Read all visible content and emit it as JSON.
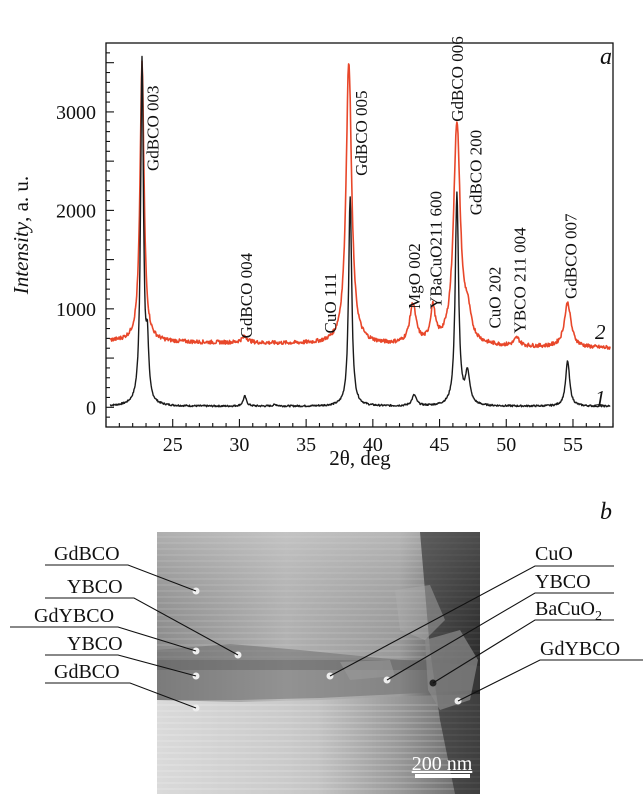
{
  "panel_a_label": "a",
  "panel_b_label": "b",
  "chart_data": {
    "type": "line",
    "xlabel": "2θ, deg",
    "ylabel_italic": "Intensity",
    "ylabel_unit": ", a. u.",
    "xlim": [
      20,
      58
    ],
    "ylim": [
      -200,
      3700
    ],
    "xticks": [
      25,
      30,
      35,
      40,
      45,
      50,
      55
    ],
    "yticks": [
      0,
      1000,
      2000,
      3000
    ],
    "grid": false,
    "series": [
      {
        "name": "1",
        "color": "#1a1a1a",
        "baseline": 10,
        "peaks": [
          {
            "x": 22.7,
            "h": 3500,
            "w": 0.13
          },
          {
            "x": 23.1,
            "h": 540,
            "w": 0.12
          },
          {
            "x": 30.4,
            "h": 100,
            "w": 0.15
          },
          {
            "x": 32.7,
            "h": 15,
            "w": 0.2
          },
          {
            "x": 38.3,
            "h": 2130,
            "w": 0.14
          },
          {
            "x": 43.1,
            "h": 110,
            "w": 0.2
          },
          {
            "x": 46.3,
            "h": 2150,
            "w": 0.15
          },
          {
            "x": 47.1,
            "h": 320,
            "w": 0.2
          },
          {
            "x": 54.6,
            "h": 460,
            "w": 0.18
          }
        ]
      },
      {
        "name": "2",
        "color": "#e8472a",
        "baseline": 670,
        "baseline_end": 600,
        "peaks": [
          {
            "x": 22.7,
            "h": 2830,
            "w": 0.18
          },
          {
            "x": 30.4,
            "h": 60,
            "w": 0.3
          },
          {
            "x": 38.2,
            "h": 2870,
            "w": 0.25
          },
          {
            "x": 43.0,
            "h": 400,
            "w": 0.28
          },
          {
            "x": 44.5,
            "h": 350,
            "w": 0.22
          },
          {
            "x": 46.3,
            "h": 2250,
            "w": 0.3
          },
          {
            "x": 47.1,
            "h": 250,
            "w": 0.3
          },
          {
            "x": 50.8,
            "h": 80,
            "w": 0.25
          },
          {
            "x": 54.6,
            "h": 450,
            "w": 0.3
          }
        ]
      }
    ],
    "annotations": [
      {
        "text": "GdBCO 003",
        "x": 23.5,
        "y": 2400
      },
      {
        "text": "GdBCO 004",
        "x": 30.5,
        "y": 700
      },
      {
        "text": "CuO 111",
        "x": 36.8,
        "y": 750
      },
      {
        "text": "GdBCO 005",
        "x": 39.1,
        "y": 2350
      },
      {
        "text": "MgO 002",
        "x": 43.1,
        "y": 1000
      },
      {
        "text": "YBaCuO211 600",
        "x": 44.7,
        "y": 1000
      },
      {
        "text": "GdBCO 006",
        "x": 46.3,
        "y": 2900
      },
      {
        "text": "GdBCO 200",
        "x": 47.7,
        "y": 1950
      },
      {
        "text": "CuO 202",
        "x": 49.1,
        "y": 800
      },
      {
        "text": "YBCO 211 004",
        "x": 51.0,
        "y": 750
      },
      {
        "text": "GdBCO 007",
        "x": 54.8,
        "y": 1100
      }
    ]
  },
  "micrograph": {
    "scale_bar": "200 nm",
    "labels_left": [
      "GdBCO",
      "YBCO",
      "GdYBCO",
      "YBCO",
      "GdBCO"
    ],
    "labels_right": [
      "CuO",
      "YBCO",
      "BaCuO",
      "GdYBCO"
    ],
    "bacuo_subscript": "2"
  }
}
